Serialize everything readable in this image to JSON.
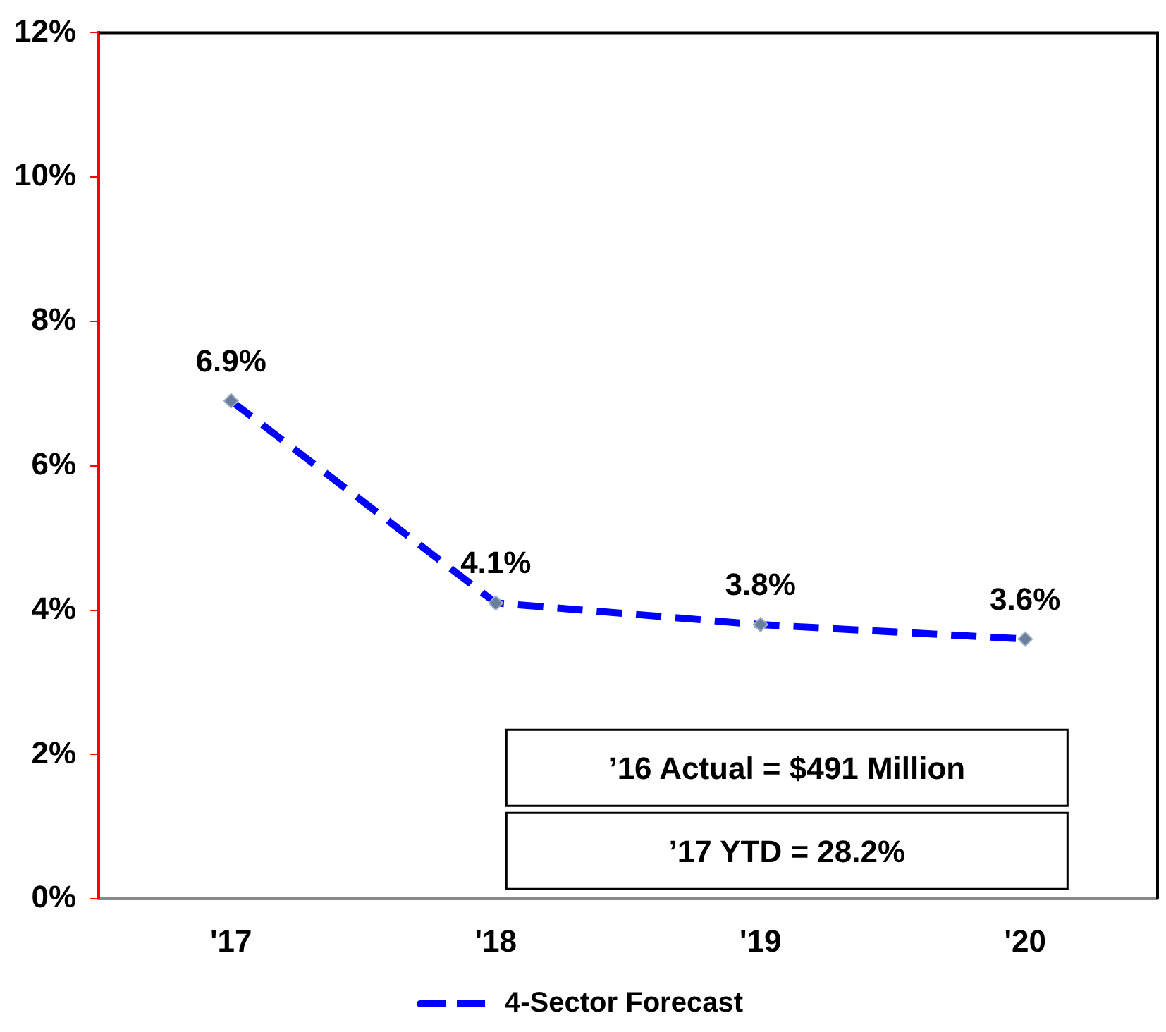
{
  "chart_data": {
    "type": "line",
    "categories": [
      "'17",
      "'18",
      "'19",
      "'20"
    ],
    "series": [
      {
        "name": "4-Sector Forecast",
        "color": "#0000ff",
        "values": [
          6.9,
          4.1,
          3.8,
          3.6
        ],
        "value_labels": [
          "6.9%",
          "4.1%",
          "3.8%",
          "3.6%"
        ]
      }
    ],
    "ylim": [
      0,
      12
    ],
    "yticks": [
      {
        "value": 0,
        "label": "0%"
      },
      {
        "value": 2,
        "label": "2%"
      },
      {
        "value": 4,
        "label": "4%"
      },
      {
        "value": 6,
        "label": "6%"
      },
      {
        "value": 8,
        "label": "8%"
      },
      {
        "value": 10,
        "label": "10%"
      },
      {
        "value": 12,
        "label": "12%"
      }
    ],
    "annotations": [
      "’16 Actual = $491 Million",
      "’17 YTD = 28.2%"
    ],
    "grid": false,
    "legend": "bottom",
    "marker": "diamond",
    "line_style": "dashed"
  }
}
